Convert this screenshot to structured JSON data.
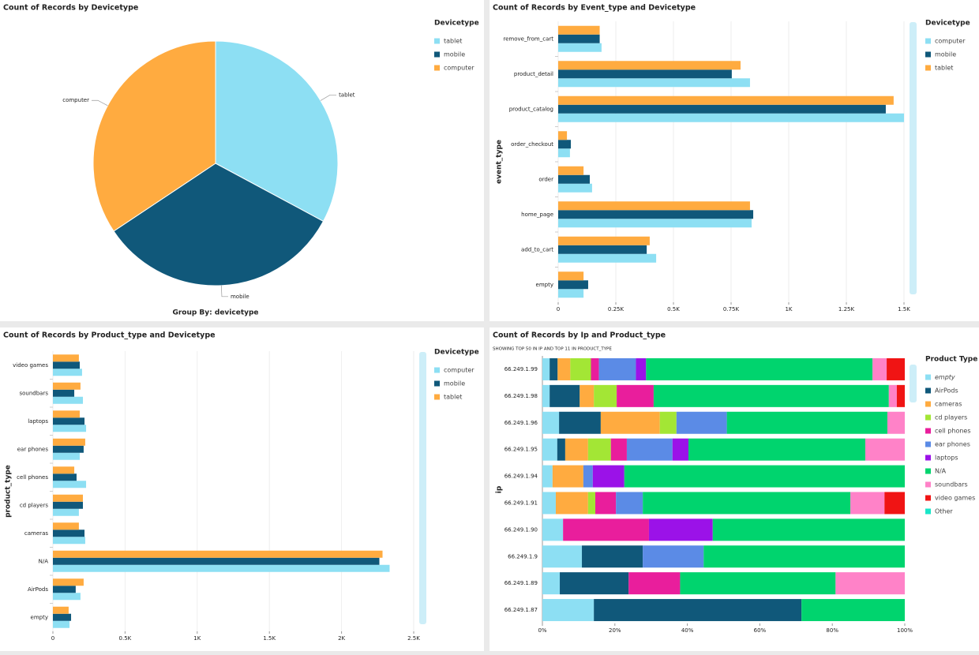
{
  "chart_data": [
    {
      "type": "pie",
      "title": "Count of Records by Devicetype",
      "legend_title": "Devicetype",
      "categories": [
        "tablet",
        "mobile",
        "computer"
      ],
      "values": [
        3913,
        3906,
        4092
      ],
      "colors": [
        "#8ddff3",
        "#10587a",
        "#ffab40"
      ],
      "footer": "Group By: devicetype"
    },
    {
      "type": "hbar",
      "title": "Count of Records by Event_type and Devicetype",
      "y_label": "event_type",
      "legend_title": "Devicetype",
      "categories": [
        "remove_from_cart",
        "product_detail",
        "product_catalog",
        "order_checkout",
        "order",
        "home_page",
        "add_to_cart",
        "empty"
      ],
      "series": [
        {
          "name": "computer",
          "color": "#8ddff3",
          "values": [
            188,
            832,
            1500,
            51,
            147,
            839,
            425,
            110
          ]
        },
        {
          "name": "mobile",
          "color": "#10587a",
          "values": [
            180,
            753,
            1421,
            55,
            137,
            846,
            384,
            130
          ]
        },
        {
          "name": "tablet",
          "color": "#ffab40",
          "values": [
            180,
            791,
            1455,
            38,
            110,
            832,
            397,
            110
          ]
        }
      ],
      "xlim": [
        0,
        1500
      ],
      "xticks": [
        0,
        {
          "value": 250,
          "label": "0.25K"
        },
        {
          "value": 500,
          "label": "0.5K"
        },
        {
          "value": 750,
          "label": "0.75K"
        },
        {
          "value": 1000,
          "label": "1K"
        },
        {
          "value": 1250,
          "label": "1.25K"
        },
        {
          "value": 1500,
          "label": "1.5K"
        }
      ],
      "grid": true
    },
    {
      "type": "hbar",
      "title": "Count of Records by Product_type and Devicetype",
      "y_label": "product_type",
      "legend_title": "Devicetype",
      "categories": [
        "video games",
        "soundbars",
        "laptops",
        "ear phones",
        "cell phones",
        "cd players",
        "cameras",
        "N/A",
        "AirPods",
        "empty"
      ],
      "series": [
        {
          "name": "computer",
          "color": "#8ddff3",
          "values": [
            202,
            208,
            230,
            186,
            230,
            180,
            224,
            2333,
            191,
            115
          ]
        },
        {
          "name": "mobile",
          "color": "#10587a",
          "values": [
            186,
            148,
            219,
            213,
            164,
            208,
            219,
            2262,
            158,
            126
          ]
        },
        {
          "name": "tablet",
          "color": "#ffab40",
          "values": [
            180,
            191,
            186,
            224,
            148,
            208,
            180,
            2284,
            213,
            109
          ]
        }
      ],
      "xlim": [
        0,
        2500
      ],
      "xticks": [
        0,
        {
          "value": 500,
          "label": "0.5K"
        },
        {
          "value": 1000,
          "label": "1K"
        },
        {
          "value": 1500,
          "label": "1.5K"
        },
        {
          "value": 2000,
          "label": "2K"
        },
        {
          "value": 2500,
          "label": "2.5K"
        }
      ],
      "grid": true
    },
    {
      "type": "stacked_hbar_100",
      "title": "Count of Records by Ip and Product_type",
      "subtitle": "SHOWING TOP 50 IN IP AND TOP 11 IN PRODUCT_TYPE",
      "y_label": "ip",
      "legend_title": "Product Type",
      "categories": [
        "66.249.1.99",
        "66.249.1.98",
        "66.249.1.96",
        "66.249.1.95",
        "66.249.1.94",
        "66.249.1.91",
        "66.249.1.90",
        "66.249.1.9",
        "66.249.1.89",
        "66.249.1.87"
      ],
      "series": [
        {
          "name": "empty",
          "color": "#8ddff3",
          "values": [
            2.0,
            2.0,
            4.6,
            4.1,
            2.8,
            3.7,
            5.7,
            10.9,
            4.8,
            14.2
          ]
        },
        {
          "name": "AirPods",
          "color": "#10587a",
          "values": [
            2.2,
            8.3,
            11.5,
            2.2,
            0,
            0,
            0,
            16.8,
            19.0,
            57.3
          ]
        },
        {
          "name": "cameras",
          "color": "#ffab40",
          "values": [
            3.5,
            3.9,
            16.3,
            6.3,
            8.5,
            8.9,
            0,
            0,
            0,
            0
          ]
        },
        {
          "name": "cd players",
          "color": "#a3e635",
          "values": [
            5.7,
            6.3,
            4.6,
            6.3,
            0,
            2.0,
            0,
            0,
            0,
            0
          ]
        },
        {
          "name": "cell phones",
          "color": "#e91e9c",
          "values": [
            2.2,
            10.2,
            0,
            4.4,
            0,
            5.7,
            23.7,
            0,
            14.2,
            0
          ]
        },
        {
          "name": "ear phones",
          "color": "#5b8be6",
          "values": [
            10.2,
            0,
            13.9,
            12.6,
            2.6,
            7.4,
            0,
            16.8,
            0,
            0
          ]
        },
        {
          "name": "laptops",
          "color": "#9b12e8",
          "values": [
            2.8,
            0,
            0,
            4.4,
            8.7,
            0,
            17.6,
            0,
            0,
            0
          ]
        },
        {
          "name": "N/A",
          "color": "#00d46e",
          "values": [
            62.5,
            64.9,
            44.3,
            48.8,
            77.4,
            57.3,
            53.0,
            55.5,
            42.9,
            28.5
          ]
        },
        {
          "name": "soundbars",
          "color": "#ff82c8",
          "values": [
            3.9,
            2.2,
            4.8,
            10.9,
            0,
            9.4,
            0,
            0,
            19.1,
            0
          ]
        },
        {
          "name": "video games",
          "color": "#f01414",
          "values": [
            5.0,
            2.2,
            0,
            0,
            0,
            5.6,
            0,
            0,
            0,
            0
          ]
        },
        {
          "name": "Other",
          "color": "#19e6c8",
          "values": [
            0,
            0,
            0,
            0,
            0,
            0,
            0,
            0,
            0,
            0
          ]
        }
      ],
      "xlim": [
        0,
        100
      ],
      "xticks": [
        {
          "value": 0,
          "label": "0%"
        },
        {
          "value": 20,
          "label": "20%"
        },
        {
          "value": 40,
          "label": "40%"
        },
        {
          "value": 60,
          "label": "60%"
        },
        {
          "value": 80,
          "label": "80%"
        },
        {
          "value": 100,
          "label": "100%"
        }
      ]
    }
  ]
}
